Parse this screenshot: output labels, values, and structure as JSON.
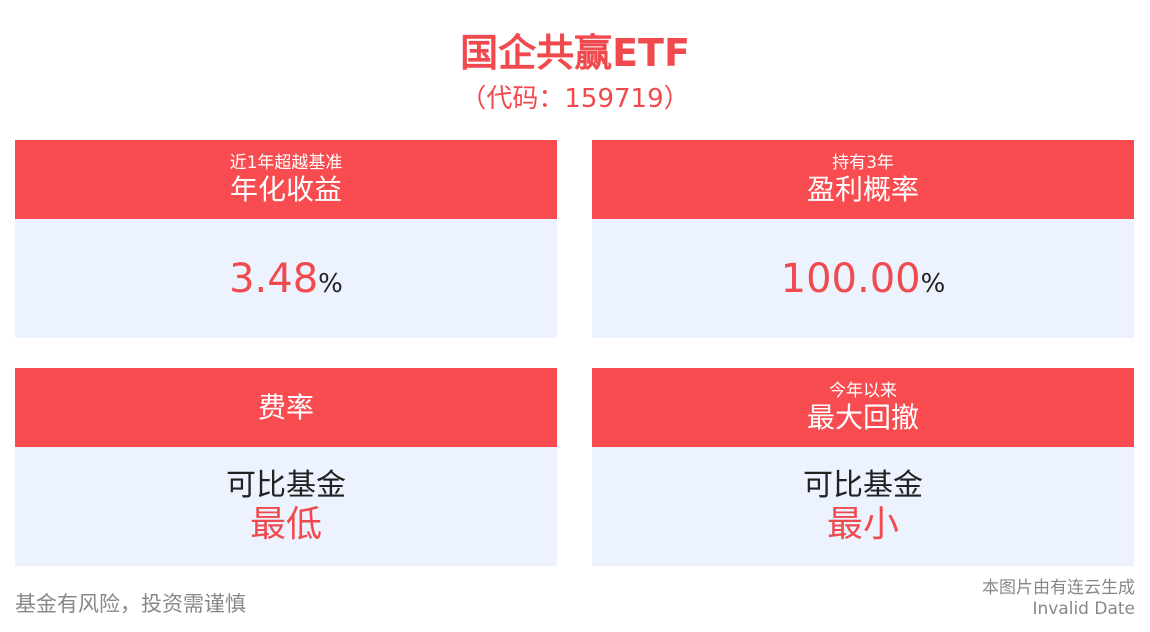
{
  "header": {
    "title": "国企共赢ETF",
    "code": "（代码：159719）"
  },
  "cards": [
    {
      "subtitle": "近1年超越基准",
      "title": "年化收益",
      "value": "3.48",
      "unit": "%"
    },
    {
      "subtitle": "持有3年",
      "title": "盈利概率",
      "value": "100.00",
      "unit": "%"
    },
    {
      "title": "费率",
      "line1": "可比基金",
      "line2": "最低"
    },
    {
      "subtitle": "今年以来",
      "title": "最大回撤",
      "line1": "可比基金",
      "line2": "最小"
    }
  ],
  "footer": {
    "disclaimer": "基金有风险，投资需谨慎",
    "source": "本图片由有连云生成",
    "date": "Invalid Date"
  }
}
